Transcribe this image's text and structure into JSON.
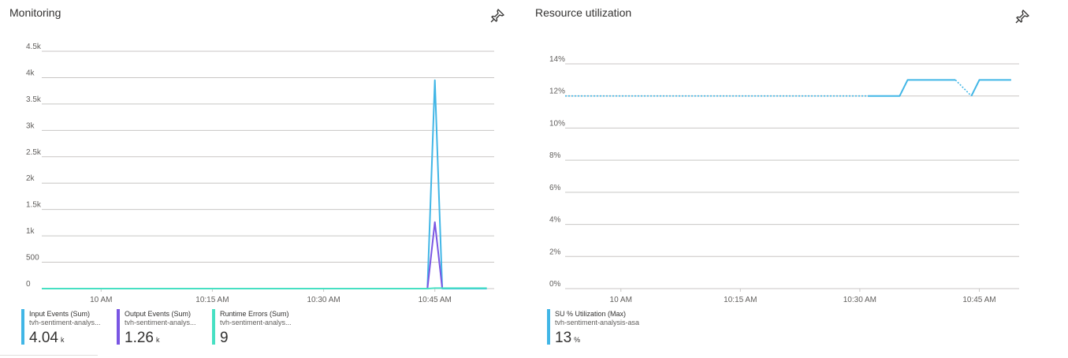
{
  "panels": {
    "monitoring": {
      "title": "Monitoring",
      "pin_icon": "pin-icon",
      "legend": [
        {
          "name": "Input Events (Sum)",
          "sub": "tvh-sentiment-analys...",
          "value": "4.04",
          "unit": "k",
          "color": "#41b6e6"
        },
        {
          "name": "Output Events (Sum)",
          "sub": "tvh-sentiment-analys...",
          "value": "1.26",
          "unit": "k",
          "color": "#7a56e3"
        },
        {
          "name": "Runtime Errors (Sum)",
          "sub": "tvh-sentiment-analys...",
          "value": "9",
          "unit": "",
          "color": "#47e0c3"
        }
      ]
    },
    "resource": {
      "title": "Resource utilization",
      "pin_icon": "pin-icon",
      "legend": [
        {
          "name": "SU % Utilization (Max)",
          "sub": "tvh-sentiment-analysis-asa",
          "value": "13",
          "unit": "%",
          "color": "#41b6e6"
        }
      ]
    }
  },
  "chart_data": [
    {
      "type": "line",
      "title": "Monitoring",
      "x_range": [
        "09:52",
        "10:53"
      ],
      "x_ticks": [
        {
          "label": "10 AM",
          "time": "10:00"
        },
        {
          "label": "10:15 AM",
          "time": "10:15"
        },
        {
          "label": "10:30 AM",
          "time": "10:30"
        },
        {
          "label": "10:45 AM",
          "time": "10:45"
        }
      ],
      "y_ticks": [
        {
          "label": "0",
          "value": 0
        },
        {
          "label": "500",
          "value": 500
        },
        {
          "label": "1k",
          "value": 1000
        },
        {
          "label": "1.5k",
          "value": 1500
        },
        {
          "label": "2k",
          "value": 2000
        },
        {
          "label": "2.5k",
          "value": 2500
        },
        {
          "label": "3k",
          "value": 3000
        },
        {
          "label": "3.5k",
          "value": 3500
        },
        {
          "label": "4k",
          "value": 4000
        },
        {
          "label": "4.5k",
          "value": 4500
        }
      ],
      "ylim": [
        0,
        4500
      ],
      "grid": true,
      "series": [
        {
          "name": "Input Events (Sum)",
          "color": "#41b6e6",
          "points": [
            [
              "09:52",
              0
            ],
            [
              "10:44",
              0
            ],
            [
              "10:45",
              3950
            ],
            [
              "10:46",
              0
            ],
            [
              "10:52",
              0
            ]
          ]
        },
        {
          "name": "Output Events (Sum)",
          "color": "#7a56e3",
          "points": [
            [
              "09:52",
              0
            ],
            [
              "10:44",
              0
            ],
            [
              "10:45",
              1260
            ],
            [
              "10:46",
              0
            ]
          ]
        },
        {
          "name": "Runtime Errors (Sum)",
          "color": "#47e0c3",
          "points": [
            [
              "09:52",
              0
            ],
            [
              "10:44",
              0
            ],
            [
              "10:45",
              9
            ],
            [
              "10:52",
              9
            ]
          ]
        }
      ]
    },
    {
      "type": "line",
      "title": "Resource utilization",
      "x_range": [
        "09:53",
        "10:50"
      ],
      "x_ticks": [
        {
          "label": "10 AM",
          "time": "10:00"
        },
        {
          "label": "10:15 AM",
          "time": "10:15"
        },
        {
          "label": "10:30 AM",
          "time": "10:30"
        },
        {
          "label": "10:45 AM",
          "time": "10:45"
        }
      ],
      "y_ticks": [
        {
          "label": "0%",
          "value": 0
        },
        {
          "label": "2%",
          "value": 2
        },
        {
          "label": "4%",
          "value": 4
        },
        {
          "label": "6%",
          "value": 6
        },
        {
          "label": "8%",
          "value": 8
        },
        {
          "label": "10%",
          "value": 10
        },
        {
          "label": "12%",
          "value": 12
        },
        {
          "label": "14%",
          "value": 14
        }
      ],
      "ylim": [
        0,
        14
      ],
      "grid": true,
      "series": [
        {
          "name": "SU % Utilization (Max)",
          "color": "#41b6e6",
          "segments": [
            {
              "style": "dotted",
              "points": [
                [
                  "09:53",
                  12
                ],
                [
                  "10:31",
                  12
                ]
              ]
            },
            {
              "style": "solid",
              "points": [
                [
                  "10:31",
                  12
                ],
                [
                  "10:35",
                  12
                ],
                [
                  "10:36",
                  13
                ],
                [
                  "10:42",
                  13
                ]
              ]
            },
            {
              "style": "dotted",
              "points": [
                [
                  "10:42",
                  13
                ],
                [
                  "10:44",
                  12
                ]
              ]
            },
            {
              "style": "solid",
              "points": [
                [
                  "10:44",
                  12
                ],
                [
                  "10:45",
                  13
                ],
                [
                  "10:49",
                  13
                ]
              ]
            }
          ]
        }
      ]
    }
  ]
}
